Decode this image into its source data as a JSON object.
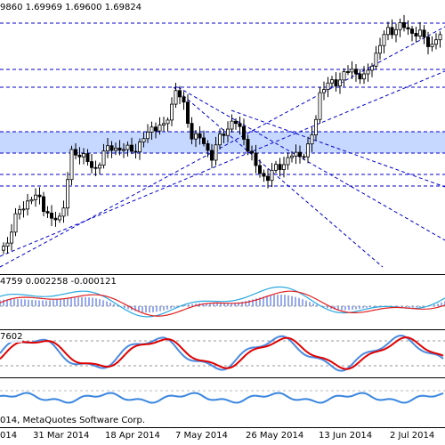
{
  "price_pane": {
    "ohlc_text": "9860 1.69969 1.69600 1.69824"
  },
  "macd_pane": {
    "values_text": "4759 0.002258 -0.000121"
  },
  "stoch_pane": {
    "values_text": "7602"
  },
  "third_pane": {
    "copyright_text": "014, MetaQuotes Software Corp."
  },
  "time_axis": {
    "labels": [
      "014",
      "31 Mar 2014",
      "18 Apr 2014",
      "7 May 2014",
      "26 May 2014",
      "13 Jun 2014",
      "2 Jul 2014"
    ]
  },
  "colors": {
    "bull_candle": "#ffffff",
    "bear_candle": "#000000",
    "guide_lines": "#0000cc",
    "highlight_band": "#c6d8ff",
    "macd_histogram": "#6a86e8",
    "macd_signal": "#e02020",
    "macd_line": "#29a8e0",
    "stoch_main": "#4a8ae0",
    "stoch_signal": "#e00000",
    "third_indicator": "#3a86e0"
  }
}
